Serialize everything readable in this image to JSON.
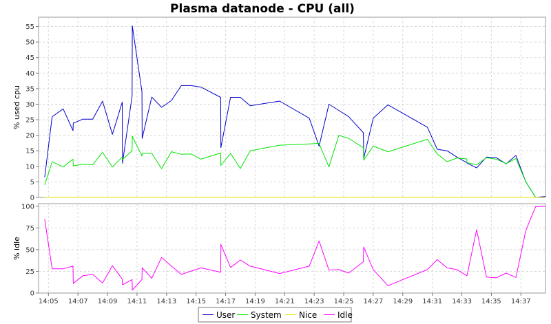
{
  "chart_data": {
    "title": "Plasma datanode - CPU (all)",
    "x_ticks": [
      "14:05",
      "14:07",
      "14:09",
      "14:11",
      "14:13",
      "14:15",
      "14:17",
      "14:19",
      "14:21",
      "14:23",
      "14:25",
      "14:27",
      "14:29",
      "14:31",
      "14:33",
      "14:35",
      "14:37"
    ],
    "legend": [
      {
        "name": "User",
        "color": "#0000cc"
      },
      {
        "name": "System",
        "color": "#00e600"
      },
      {
        "name": "Nice",
        "color": "#e6e600"
      },
      {
        "name": "Idle",
        "color": "#ff00ff"
      }
    ],
    "panels": [
      {
        "type": "line",
        "ylabel": "% used cpu",
        "ylim": [
          0,
          58
        ],
        "yticks": [
          0,
          5,
          10,
          15,
          20,
          25,
          30,
          35,
          40,
          45,
          50,
          55
        ],
        "grid": true,
        "series": [
          {
            "name": "User",
            "color": "#0000cc",
            "x": [
              "14:04:45",
              "14:05:15",
              "14:06:00",
              "14:06:40",
              "14:06:41",
              "14:06:45",
              "14:07:20",
              "14:08:00",
              "14:08:40",
              "14:09:20",
              "14:10:00",
              "14:10:01",
              "14:10:40",
              "14:10:41",
              "14:11:20",
              "14:11:21",
              "14:12:00",
              "14:12:40",
              "14:13:20",
              "14:14:00",
              "14:14:40",
              "14:15:20",
              "14:16:40",
              "14:16:41",
              "14:17:20",
              "14:18:00",
              "14:18:40",
              "14:20:40",
              "14:22:40",
              "14:23:20",
              "14:24:00",
              "14:24:40",
              "14:25:20",
              "14:26:20",
              "14:26:21",
              "14:27:00",
              "14:28:00",
              "14:30:40",
              "14:31:20",
              "14:32:00",
              "14:32:40",
              "14:33:20",
              "14:33:21",
              "14:34:00",
              "14:34:40",
              "14:35:20",
              "14:36:00",
              "14:36:40",
              "14:37:20",
              "14:38:00",
              "14:38:40"
            ],
            "values": [
              6.5,
              26,
              28.5,
              21.5,
              24,
              24,
              25.2,
              25.2,
              31,
              20.3,
              30.7,
              11,
              32.6,
              55.2,
              34,
              19,
              32.3,
              29,
              31.2,
              36,
              36,
              35.5,
              32.2,
              16,
              32.2,
              32.2,
              29.5,
              31,
              25.5,
              16.5,
              30,
              28,
              26,
              20.8,
              12.5,
              25.5,
              29.8,
              22.6,
              15.5,
              15,
              13,
              11.2,
              11.1,
              9.5,
              13,
              12.8,
              10.8,
              13.5,
              5,
              0,
              0.3
            ]
          },
          {
            "name": "System",
            "color": "#00e600",
            "x": [
              "14:04:45",
              "14:05:15",
              "14:06:00",
              "14:06:40",
              "14:06:41",
              "14:06:45",
              "14:07:20",
              "14:08:00",
              "14:08:40",
              "14:09:20",
              "14:10:00",
              "14:10:01",
              "14:10:40",
              "14:10:41",
              "14:11:20",
              "14:11:21",
              "14:12:00",
              "14:12:40",
              "14:13:20",
              "14:14:00",
              "14:14:40",
              "14:15:20",
              "14:16:40",
              "14:16:41",
              "14:17:20",
              "14:18:00",
              "14:18:40",
              "14:20:40",
              "14:22:40",
              "14:23:20",
              "14:24:00",
              "14:24:40",
              "14:25:20",
              "14:26:20",
              "14:26:21",
              "14:27:00",
              "14:28:00",
              "14:30:40",
              "14:31:20",
              "14:32:00",
              "14:32:40",
              "14:33:20",
              "14:33:21",
              "14:34:00",
              "14:34:40",
              "14:35:20",
              "14:36:00",
              "14:36:40",
              "14:37:20",
              "14:38:00",
              "14:38:40"
            ],
            "values": [
              4,
              11.5,
              9.8,
              12.3,
              10.2,
              10.2,
              10.7,
              10.5,
              14.5,
              9.8,
              13,
              12.2,
              15,
              19.7,
              13.3,
              14.2,
              14.2,
              9.3,
              14.7,
              13.9,
              14,
              12.3,
              14.3,
              10.3,
              14.2,
              9.3,
              15,
              16.8,
              17.2,
              17.4,
              9.8,
              20,
              19,
              16,
              12,
              16.5,
              14.7,
              18.7,
              14,
              11.5,
              12.7,
              12.4,
              11.2,
              10.5,
              12.8,
              12.3,
              10.9,
              12.5,
              5,
              0,
              0
            ]
          },
          {
            "name": "Nice",
            "color": "#e6e600",
            "x": [
              "14:04:45",
              "14:38:40"
            ],
            "values": [
              0,
              0
            ]
          }
        ]
      },
      {
        "type": "line",
        "ylabel": "% idle",
        "ylim": [
          0,
          103
        ],
        "yticks": [
          0,
          25,
          50,
          75,
          100
        ],
        "grid": true,
        "series": [
          {
            "name": "Idle",
            "color": "#ff00ff",
            "x": [
              "14:04:45",
              "14:05:15",
              "14:06:00",
              "14:06:40",
              "14:06:41",
              "14:07:20",
              "14:08:00",
              "14:08:40",
              "14:09:20",
              "14:10:00",
              "14:10:01",
              "14:10:40",
              "14:10:41",
              "14:11:20",
              "14:11:21",
              "14:12:00",
              "14:12:40",
              "14:13:20",
              "14:14:00",
              "14:15:20",
              "14:16:40",
              "14:16:41",
              "14:17:20",
              "14:18:00",
              "14:18:40",
              "14:20:40",
              "14:22:40",
              "14:23:20",
              "14:24:00",
              "14:24:40",
              "14:25:20",
              "14:26:20",
              "14:26:21",
              "14:27:00",
              "14:28:00",
              "14:30:40",
              "14:31:20",
              "14:32:00",
              "14:32:40",
              "14:33:20",
              "14:33:21",
              "14:34:00",
              "14:34:40",
              "14:35:20",
              "14:36:00",
              "14:36:40",
              "14:37:20",
              "14:38:00",
              "14:38:40"
            ],
            "values": [
              85,
              28,
              28,
              31,
              11,
              20,
              21.5,
              11.5,
              31.5,
              16,
              9.5,
              15.5,
              3.5,
              15.5,
              29,
              17,
              41,
              31,
              21.5,
              29,
              24,
              56,
              29.5,
              38,
              31,
              22.5,
              31,
              60,
              26.5,
              27,
              23,
              36,
              53,
              27,
              8.5,
              27,
              38.5,
              29,
              27,
              20,
              20,
              73,
              18.5,
              17.5,
              23,
              18,
              72,
              99.5,
              100
            ]
          }
        ]
      }
    ]
  }
}
